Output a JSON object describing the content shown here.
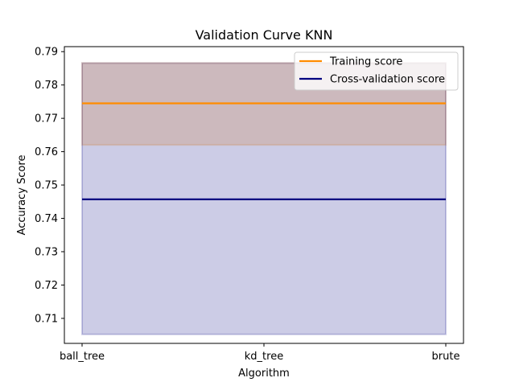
{
  "chart_data": {
    "type": "line",
    "title": "Validation Curve KNN",
    "xlabel": "Algorithm",
    "ylabel": "Accuracy Score",
    "categories": [
      "ball_tree",
      "kd_tree",
      "brute"
    ],
    "ylim": [
      0.7025,
      0.7915
    ],
    "yticks": [
      0.71,
      0.72,
      0.73,
      0.74,
      0.75,
      0.76,
      0.77,
      0.78,
      0.79
    ],
    "ytick_labels": [
      "0.71",
      "0.72",
      "0.73",
      "0.74",
      "0.75",
      "0.76",
      "0.77",
      "0.78",
      "0.79"
    ],
    "legend_position": "top-right",
    "grid": false,
    "series": [
      {
        "name": "Training score",
        "color": "#ff8c00",
        "values": [
          0.7745,
          0.7745,
          0.7745
        ],
        "band_lower": [
          0.762,
          0.762,
          0.762
        ],
        "band_upper": [
          0.7866,
          0.7866,
          0.7866
        ],
        "band_color": "#ff8c00"
      },
      {
        "name": "Cross-validation score",
        "color": "#000080",
        "values": [
          0.7457,
          0.7457,
          0.7457
        ],
        "band_lower": [
          0.7052,
          0.7052,
          0.7052
        ],
        "band_upper": [
          0.7866,
          0.7866,
          0.7866
        ],
        "band_color": "#000080"
      }
    ]
  }
}
